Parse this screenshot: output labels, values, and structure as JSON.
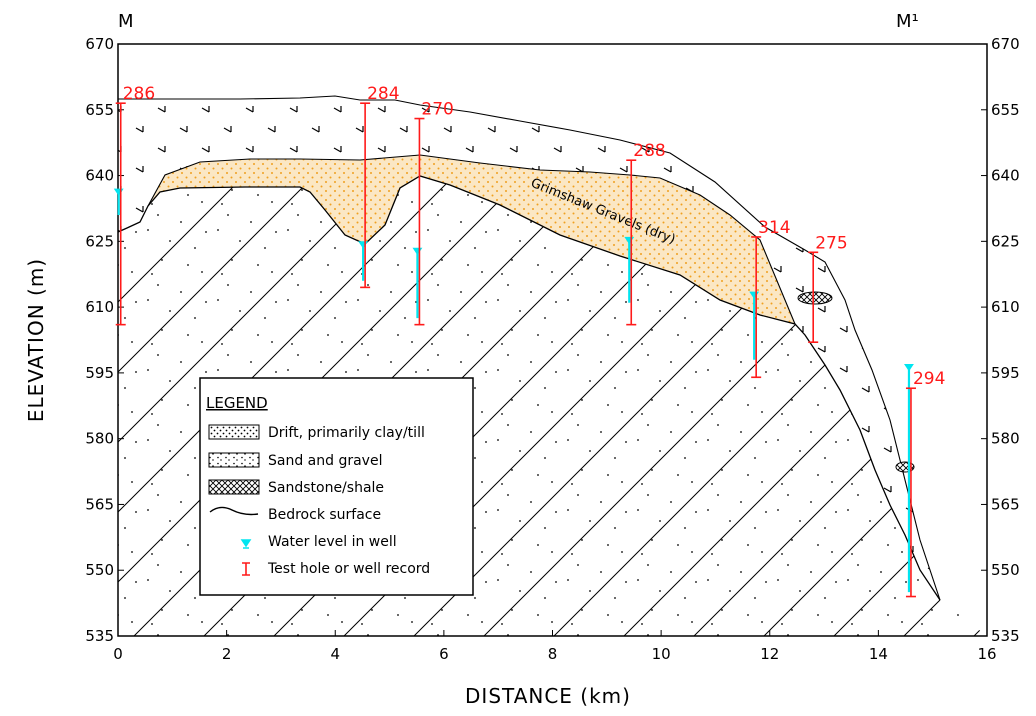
{
  "section_labels": {
    "left": "M",
    "right": "M¹"
  },
  "axes": {
    "x_title": "DISTANCE (km)",
    "y_title": "ELEVATION (m)",
    "x_ticks": [
      "0",
      "2",
      "4",
      "6",
      "8",
      "10",
      "12",
      "14",
      "16"
    ],
    "y_ticks": [
      "670",
      "655",
      "640",
      "625",
      "610",
      "595",
      "580",
      "565",
      "550",
      "535"
    ]
  },
  "unit_label": "Grimshaw Gravels (dry)",
  "wells": [
    {
      "id": "286",
      "x_km": 0.05,
      "top_m": 656.5,
      "bottom_m": 606,
      "water_m": 636,
      "water_bottom_m": 631
    },
    {
      "id": "284",
      "x_km": 4.55,
      "top_m": 656.5,
      "bottom_m": 614.5,
      "water_m": 624,
      "water_bottom_m": 616
    },
    {
      "id": "270",
      "x_km": 5.55,
      "top_m": 653,
      "bottom_m": 606,
      "water_m": 622.5,
      "water_bottom_m": 607.5
    },
    {
      "id": "288",
      "x_km": 9.45,
      "top_m": 643.5,
      "bottom_m": 606,
      "water_m": 625,
      "water_bottom_m": 611
    },
    {
      "id": "314",
      "x_km": 11.75,
      "top_m": 626,
      "bottom_m": 594,
      "water_m": 612.5,
      "water_bottom_m": 598
    },
    {
      "id": "275",
      "x_km": 12.8,
      "top_m": 622.5,
      "bottom_m": 602,
      "water_m": null,
      "water_bottom_m": null
    },
    {
      "id": "294",
      "x_km": 14.6,
      "top_m": 591.5,
      "bottom_m": 544,
      "water_m": 596,
      "water_bottom_m": 545
    }
  ],
  "legend": {
    "title": "LEGEND",
    "items": [
      {
        "label": "Drift, primarily clay/till",
        "symbol": "drift"
      },
      {
        "label": "Sand and gravel",
        "symbol": "sand"
      },
      {
        "label": "Sandstone/shale",
        "symbol": "sandstone"
      },
      {
        "label": "Bedrock surface",
        "symbol": "bedrock-line"
      },
      {
        "label": "Water level in well",
        "symbol": "water-level"
      },
      {
        "label": "Test hole or well record",
        "symbol": "test-hole"
      }
    ]
  },
  "colors": {
    "well_record": "#ff1a1a",
    "water_level": "#00e5f0",
    "sand_gravel_fill": "#fbe7c4",
    "sand_gravel_dot": "#f0a020",
    "line": "#000000"
  }
}
